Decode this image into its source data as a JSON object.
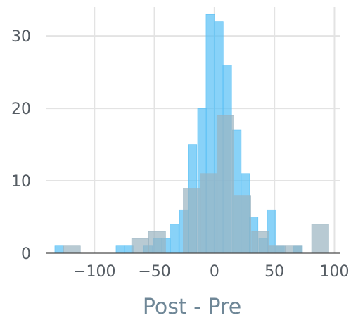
{
  "chart_data": {
    "type": "bar",
    "subtype": "overlaid-histogram",
    "xlabel": "Post - Pre",
    "ylabel": "",
    "xlim": [
      -140,
      105
    ],
    "ylim": [
      0,
      34
    ],
    "xticks": [
      -100,
      -50,
      0,
      50,
      100
    ],
    "xtick_labels": [
      "−100",
      "−50",
      "0",
      "50",
      "100"
    ],
    "yticks": [
      0,
      10,
      20,
      30
    ],
    "ytick_labels": [
      "0",
      "10",
      "20",
      "30"
    ],
    "grid": true,
    "legend": "none",
    "series": [
      {
        "color": "#56bff5",
        "opacity": 0.7,
        "bin_width": 7.3,
        "bins": [
          {
            "x0": -133,
            "value": 1
          },
          {
            "x0": -82,
            "value": 1
          },
          {
            "x0": -75,
            "value": 1
          },
          {
            "x0": -59,
            "value": 1
          },
          {
            "x0": -51,
            "value": 2
          },
          {
            "x0": -44,
            "value": 2
          },
          {
            "x0": -37,
            "value": 4
          },
          {
            "x0": -29,
            "value": 6
          },
          {
            "x0": -22,
            "value": 15
          },
          {
            "x0": -14,
            "value": 20
          },
          {
            "x0": -7,
            "value": 33
          },
          {
            "x0": 0,
            "value": 32
          },
          {
            "x0": 7,
            "value": 26
          },
          {
            "x0": 15,
            "value": 17
          },
          {
            "x0": 22,
            "value": 11
          },
          {
            "x0": 29,
            "value": 5
          },
          {
            "x0": 37,
            "value": 2
          },
          {
            "x0": 44,
            "value": 6
          },
          {
            "x0": 51,
            "value": 1
          },
          {
            "x0": 66,
            "value": 1
          }
        ]
      },
      {
        "color": "#9ab4c1",
        "opacity": 0.7,
        "bin_width": 14.3,
        "bins": [
          {
            "x0": -126,
            "value": 1
          },
          {
            "x0": -69,
            "value": 2
          },
          {
            "x0": -55,
            "value": 3
          },
          {
            "x0": -26,
            "value": 9
          },
          {
            "x0": -12,
            "value": 11
          },
          {
            "x0": 2,
            "value": 19
          },
          {
            "x0": 16,
            "value": 8
          },
          {
            "x0": 31,
            "value": 3
          },
          {
            "x0": 45,
            "value": 1
          },
          {
            "x0": 59,
            "value": 1
          },
          {
            "x0": 81,
            "value": 4
          }
        ]
      }
    ]
  }
}
